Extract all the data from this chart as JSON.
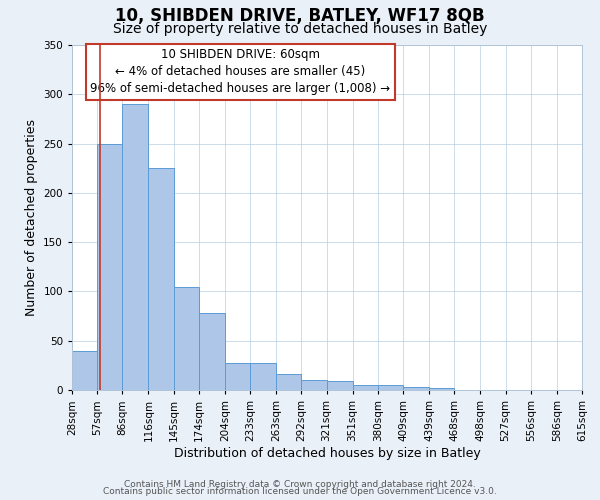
{
  "title": "10, SHIBDEN DRIVE, BATLEY, WF17 8QB",
  "subtitle": "Size of property relative to detached houses in Batley",
  "xlabel": "Distribution of detached houses by size in Batley",
  "ylabel": "Number of detached properties",
  "bar_values": [
    40,
    250,
    290,
    225,
    104,
    78,
    27,
    27,
    16,
    10,
    9,
    5,
    5,
    3,
    2,
    0,
    0,
    0,
    0,
    0
  ],
  "bin_edges": [
    28,
    57,
    86,
    116,
    145,
    174,
    204,
    233,
    263,
    292,
    321,
    351,
    380,
    409,
    439,
    468,
    498,
    527,
    556,
    586,
    615
  ],
  "x_labels": [
    "28sqm",
    "57sqm",
    "86sqm",
    "116sqm",
    "145sqm",
    "174sqm",
    "204sqm",
    "233sqm",
    "263sqm",
    "292sqm",
    "321sqm",
    "351sqm",
    "380sqm",
    "409sqm",
    "439sqm",
    "468sqm",
    "498sqm",
    "527sqm",
    "556sqm",
    "586sqm",
    "615sqm"
  ],
  "bar_color": "#aec6e8",
  "bar_edge_color": "#5b9bd5",
  "vline_x": 60,
  "vline_color": "#c0392b",
  "annotation_line1": "10 SHIBDEN DRIVE: 60sqm",
  "annotation_line2": "← 4% of detached houses are smaller (45)",
  "annotation_line3": "96% of semi-detached houses are larger (1,008) →",
  "annotation_box_color": "#ffffff",
  "annotation_box_edge": "#c0392b",
  "ylim": [
    0,
    350
  ],
  "yticks": [
    0,
    50,
    100,
    150,
    200,
    250,
    300,
    350
  ],
  "background_color": "#eaf0f8",
  "plot_bg_color": "#ffffff",
  "footer_line1": "Contains HM Land Registry data © Crown copyright and database right 2024.",
  "footer_line2": "Contains public sector information licensed under the Open Government Licence v3.0.",
  "title_fontsize": 12,
  "subtitle_fontsize": 10,
  "label_fontsize": 9,
  "tick_fontsize": 7.5,
  "annotation_fontsize": 8.5,
  "footer_fontsize": 6.5
}
